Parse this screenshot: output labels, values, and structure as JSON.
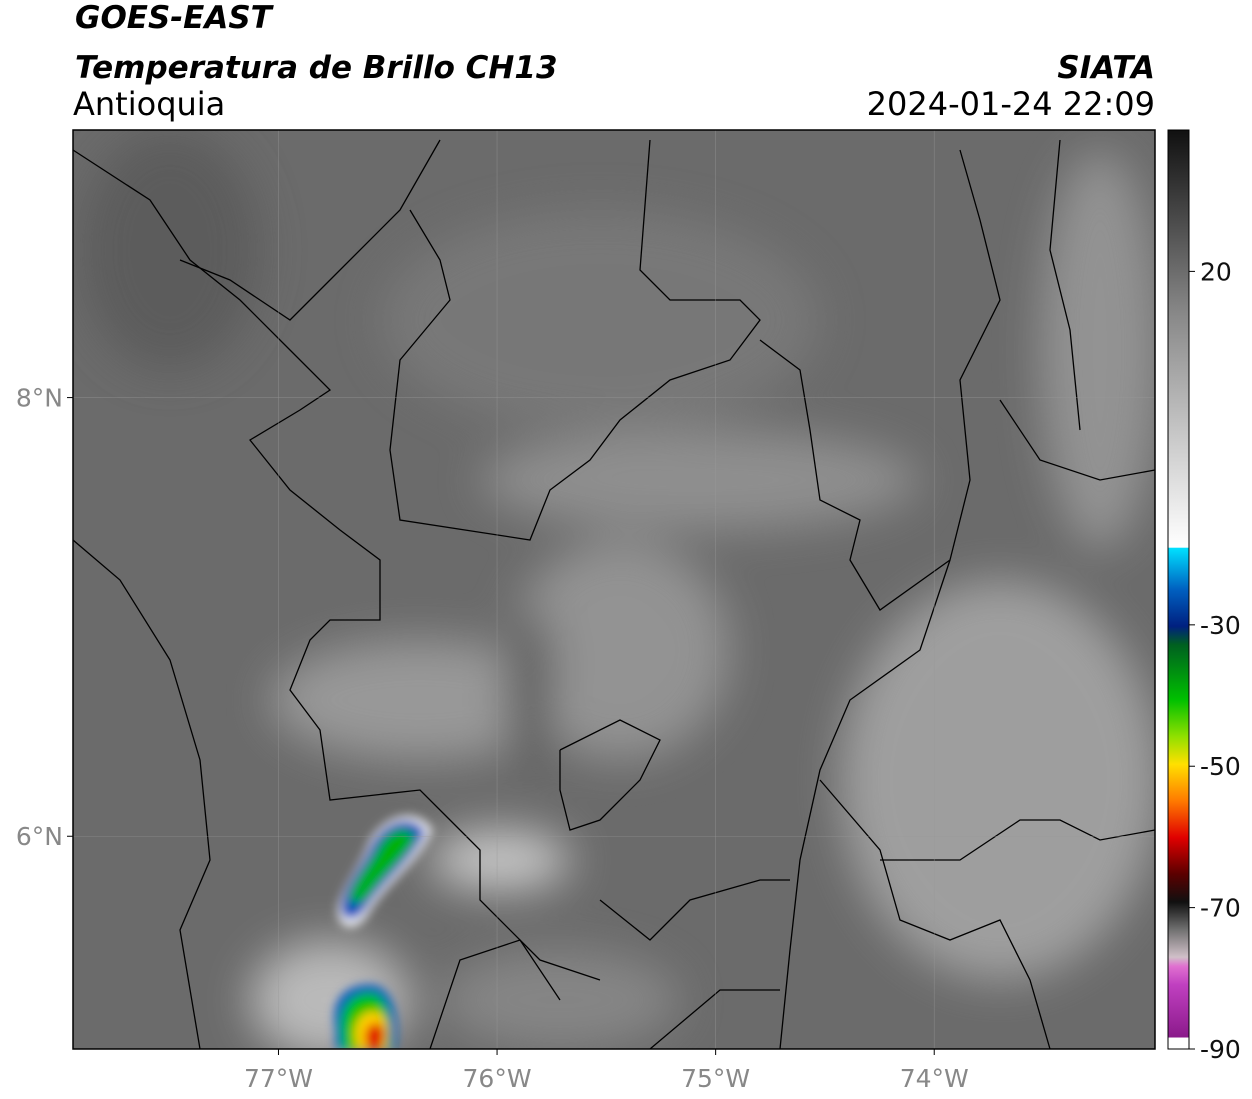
{
  "header": {
    "title": "GOES-EAST",
    "subtitle": "Temperatura de Brillo CH13",
    "region": "Antioquia",
    "source": "SIATA",
    "timestamp": "2024-01-24 22:09"
  },
  "map": {
    "xlim": [
      -77.94,
      -72.99
    ],
    "ylim": [
      5.03,
      9.22
    ],
    "xticks": [
      {
        "value": -77,
        "label": "77°W"
      },
      {
        "value": -76,
        "label": "76°W"
      },
      {
        "value": -75,
        "label": "75°W"
      },
      {
        "value": -74,
        "label": "74°W"
      }
    ],
    "yticks": [
      {
        "value": 6,
        "label": "6°N"
      },
      {
        "value": 8,
        "label": "8°N"
      }
    ]
  },
  "colorbar": {
    "lim": [
      -90,
      40
    ],
    "ticks": [
      20,
      -30,
      -50,
      -70,
      -90
    ]
  }
}
